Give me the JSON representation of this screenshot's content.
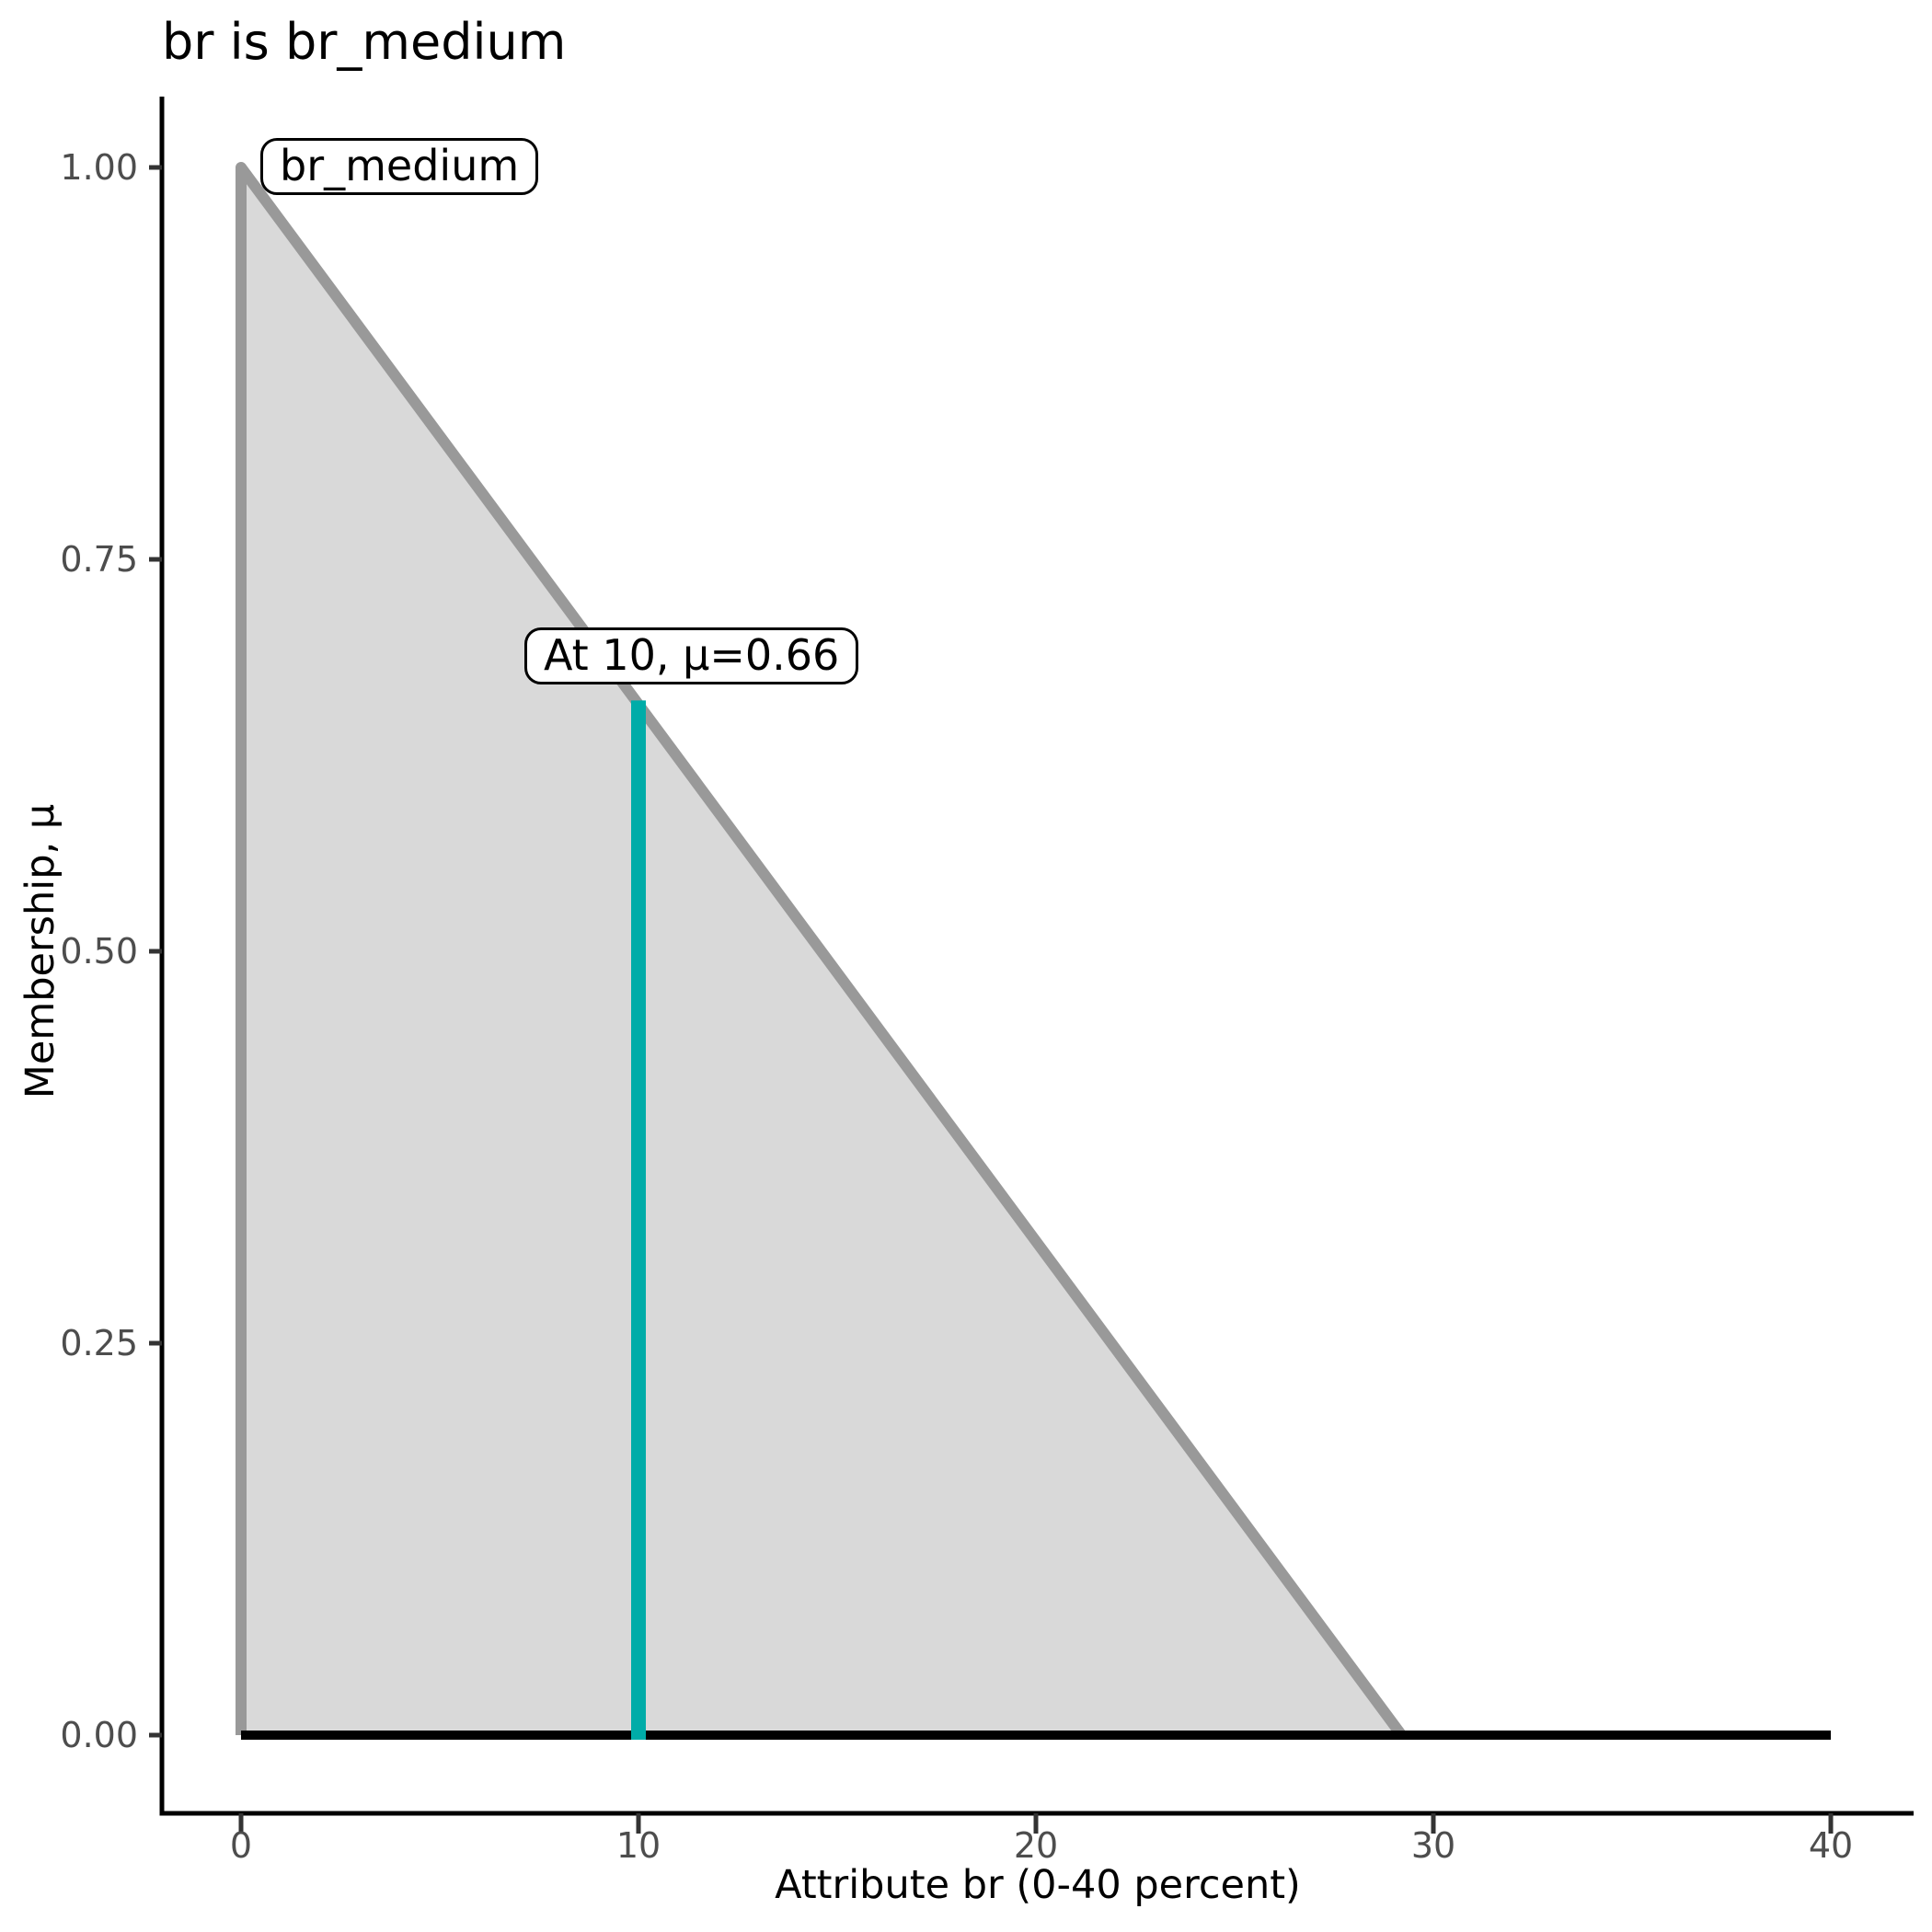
{
  "chart_data": {
    "type": "area",
    "title": "br is br_medium",
    "xlabel": "Attribute br (0-40 percent)",
    "ylabel": "Membership, μ",
    "xlim": [
      0,
      40
    ],
    "ylim": [
      0,
      1
    ],
    "grid": false,
    "legend": false,
    "x_ticks": [
      {
        "label": "0",
        "value": 0
      },
      {
        "label": "10",
        "value": 10
      },
      {
        "label": "20",
        "value": 20
      },
      {
        "label": "30",
        "value": 30
      },
      {
        "label": "40",
        "value": 40
      }
    ],
    "y_ticks": [
      {
        "label": "1.00",
        "value": 1.0
      },
      {
        "label": "0.75",
        "value": 0.75
      },
      {
        "label": "0.50",
        "value": 0.5
      },
      {
        "label": "0.25",
        "value": 0.25
      },
      {
        "label": "0.00",
        "value": 0.0
      }
    ],
    "membership_function": {
      "name": "br_medium",
      "shape": "triangular",
      "vertices": [
        {
          "x": 0,
          "mu": 0
        },
        {
          "x": 0,
          "mu": 1
        },
        {
          "x": 29.2,
          "mu": 0
        }
      ],
      "fill_color": "#d9d9d9",
      "line_color": "#999999"
    },
    "zero_line": {
      "x_start": 0,
      "x_end": 40,
      "mu": 0,
      "color": "#000000"
    },
    "crisp_input": {
      "x": 10,
      "mu": 0.66,
      "color": "#00aca8"
    },
    "annotations": [
      {
        "id": "mf-label",
        "text": "br_medium"
      },
      {
        "id": "crisp-label",
        "text": "At 10, μ=0.66"
      }
    ],
    "style": {
      "axis_color": "#000000",
      "tick_mark_color": "#333333",
      "tick_label_color": "#4d4d4d"
    }
  }
}
